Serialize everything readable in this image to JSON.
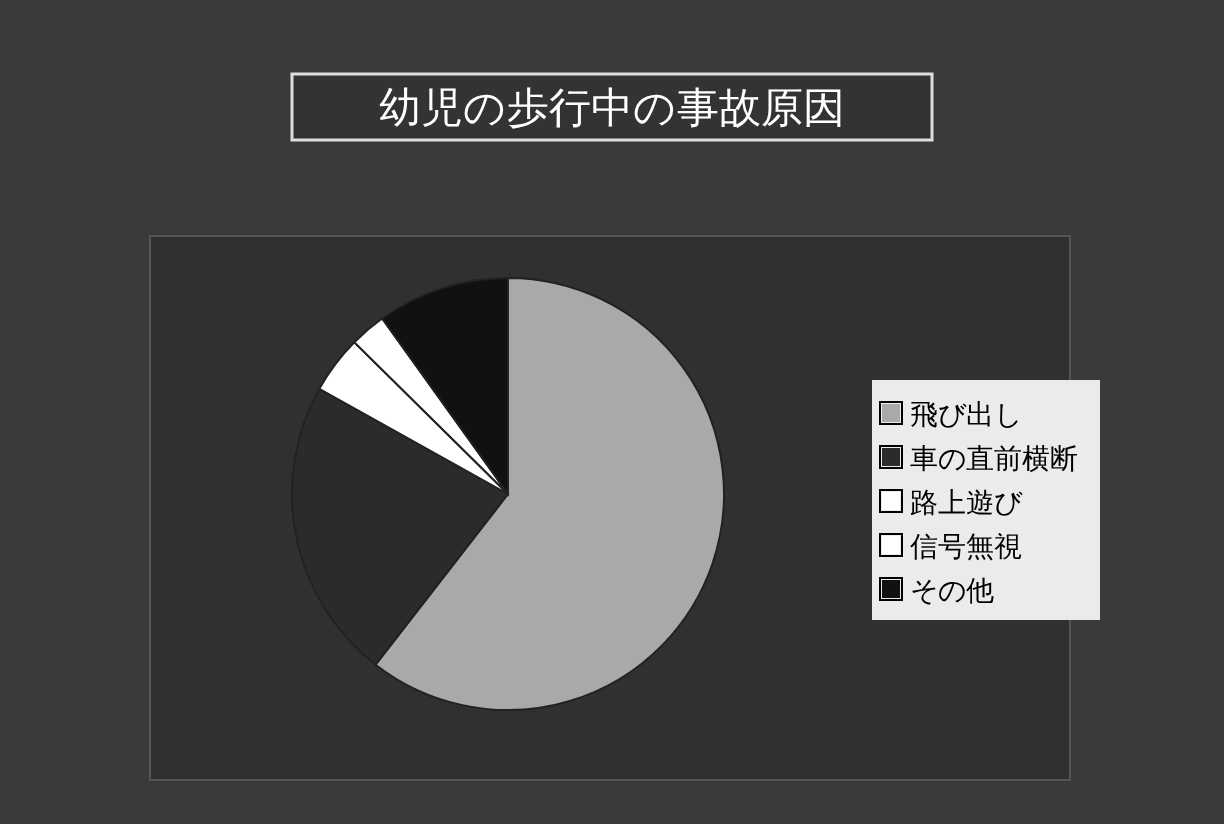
{
  "chart_data": {
    "type": "pie",
    "title": "幼児の歩行中の事故原因",
    "categories": [
      "飛び出し",
      "車の直前横断",
      "路上遊び",
      "信号無視",
      "その他"
    ],
    "values": [
      60.5,
      22.6,
      4.3,
      2.7,
      9.9
    ],
    "colors": [
      "#a9a9a9",
      "#2b2b2b",
      "#ffffff",
      "#ffffff",
      "#111111"
    ],
    "legend": "right"
  }
}
